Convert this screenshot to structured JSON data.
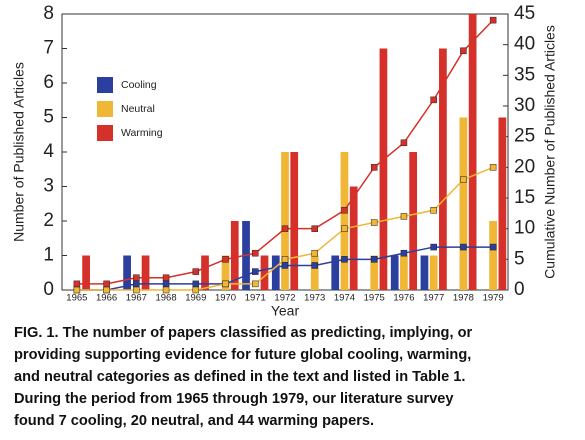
{
  "chart_data": {
    "type": "bar",
    "categories": [
      "1965",
      "1966",
      "1967",
      "1968",
      "1969",
      "1970",
      "1971",
      "1972",
      "1973",
      "1974",
      "1975",
      "1976",
      "1977",
      "1978",
      "1979"
    ],
    "x_label": "Year",
    "y_label": "Number of Published Articles",
    "y2_label": "Cumulative Number of Published Articles",
    "ylim": [
      0,
      8
    ],
    "yticks": [
      0,
      1,
      2,
      3,
      4,
      5,
      6,
      7,
      8
    ],
    "y2lim": [
      0,
      45
    ],
    "y2ticks": [
      0,
      5,
      10,
      15,
      20,
      25,
      30,
      35,
      40,
      45
    ],
    "legend": "upper left",
    "series": [
      {
        "name": "Cooling",
        "color": "#2b3f9e",
        "values": [
          0,
          0,
          1,
          0,
          0,
          0,
          2,
          1,
          0,
          1,
          0,
          1,
          1,
          0,
          0
        ]
      },
      {
        "name": "Neutral",
        "color": "#f0b636",
        "values": [
          0,
          0,
          0,
          0,
          0,
          1,
          0,
          4,
          1,
          4,
          1,
          1,
          1,
          5,
          2
        ]
      },
      {
        "name": "Warming",
        "color": "#d6302a",
        "values": [
          1,
          0,
          1,
          0,
          1,
          2,
          1,
          4,
          0,
          3,
          7,
          4,
          7,
          8,
          5
        ]
      }
    ],
    "cumulative": [
      {
        "color": "#2b3f9e",
        "axis": "y2",
        "values": [
          0,
          0,
          1,
          1,
          1,
          1,
          3,
          4,
          4,
          5,
          5,
          6,
          7,
          7,
          7
        ]
      },
      {
        "color": "#f0b636",
        "axis": "y2",
        "values": [
          0,
          0,
          0,
          0,
          0,
          1,
          1,
          5,
          6,
          10,
          11,
          12,
          13,
          18,
          20
        ]
      },
      {
        "color": "#d6302a",
        "axis": "y2",
        "values": [
          1,
          1,
          2,
          2,
          3,
          5,
          6,
          10,
          10,
          13,
          20,
          24,
          31,
          39,
          44
        ]
      }
    ]
  },
  "caption": {
    "lines": [
      "FIG. 1. The number of papers classified as predicting, implying, or",
      "providing supporting evidence for future global cooling, warming,",
      "and neutral categories as defined in the text and listed in Table 1.",
      "During the period from 1965 through 1979, our literature survey",
      "found 7 cooling, 20 neutral, and 44 warming papers."
    ]
  }
}
